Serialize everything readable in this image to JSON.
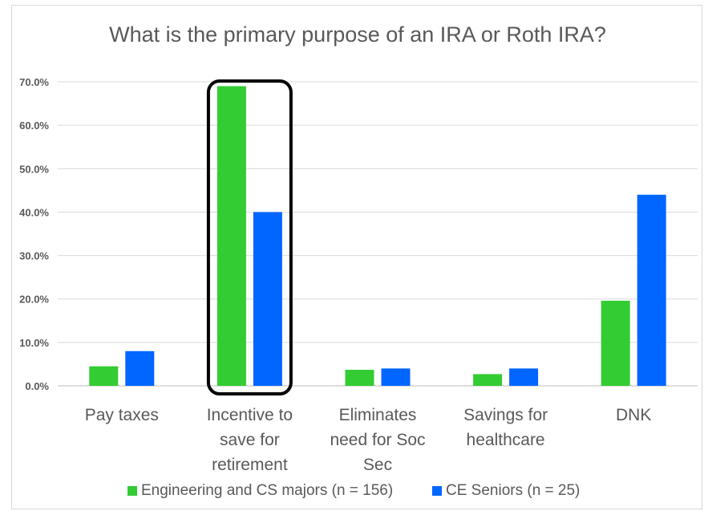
{
  "chart_data": {
    "type": "bar",
    "title": "What is the primary purpose of an IRA or Roth IRA?",
    "categories": [
      [
        "Pay taxes"
      ],
      [
        "Incentive to",
        "save for",
        "retirement"
      ],
      [
        "Eliminates",
        "need for Soc",
        "Sec"
      ],
      [
        "Savings for",
        "healthcare"
      ],
      [
        "DNK"
      ]
    ],
    "series": [
      {
        "name": "Engineering and CS majors (n = 156)",
        "values": [
          4.5,
          69.0,
          3.7,
          2.7,
          19.6
        ],
        "color": "#33cc33"
      },
      {
        "name": "CE Seniors (n = 25)",
        "values": [
          8.0,
          40.0,
          4.0,
          4.0,
          44.0
        ],
        "color": "#0066ff"
      }
    ],
    "ylim": [
      0,
      70
    ],
    "yticks": [
      "0.0%",
      "10.0%",
      "20.0%",
      "30.0%",
      "40.0%",
      "50.0%",
      "60.0%",
      "70.0%"
    ],
    "grid": true,
    "legend": "bottom",
    "highlight_category_index": 1
  }
}
